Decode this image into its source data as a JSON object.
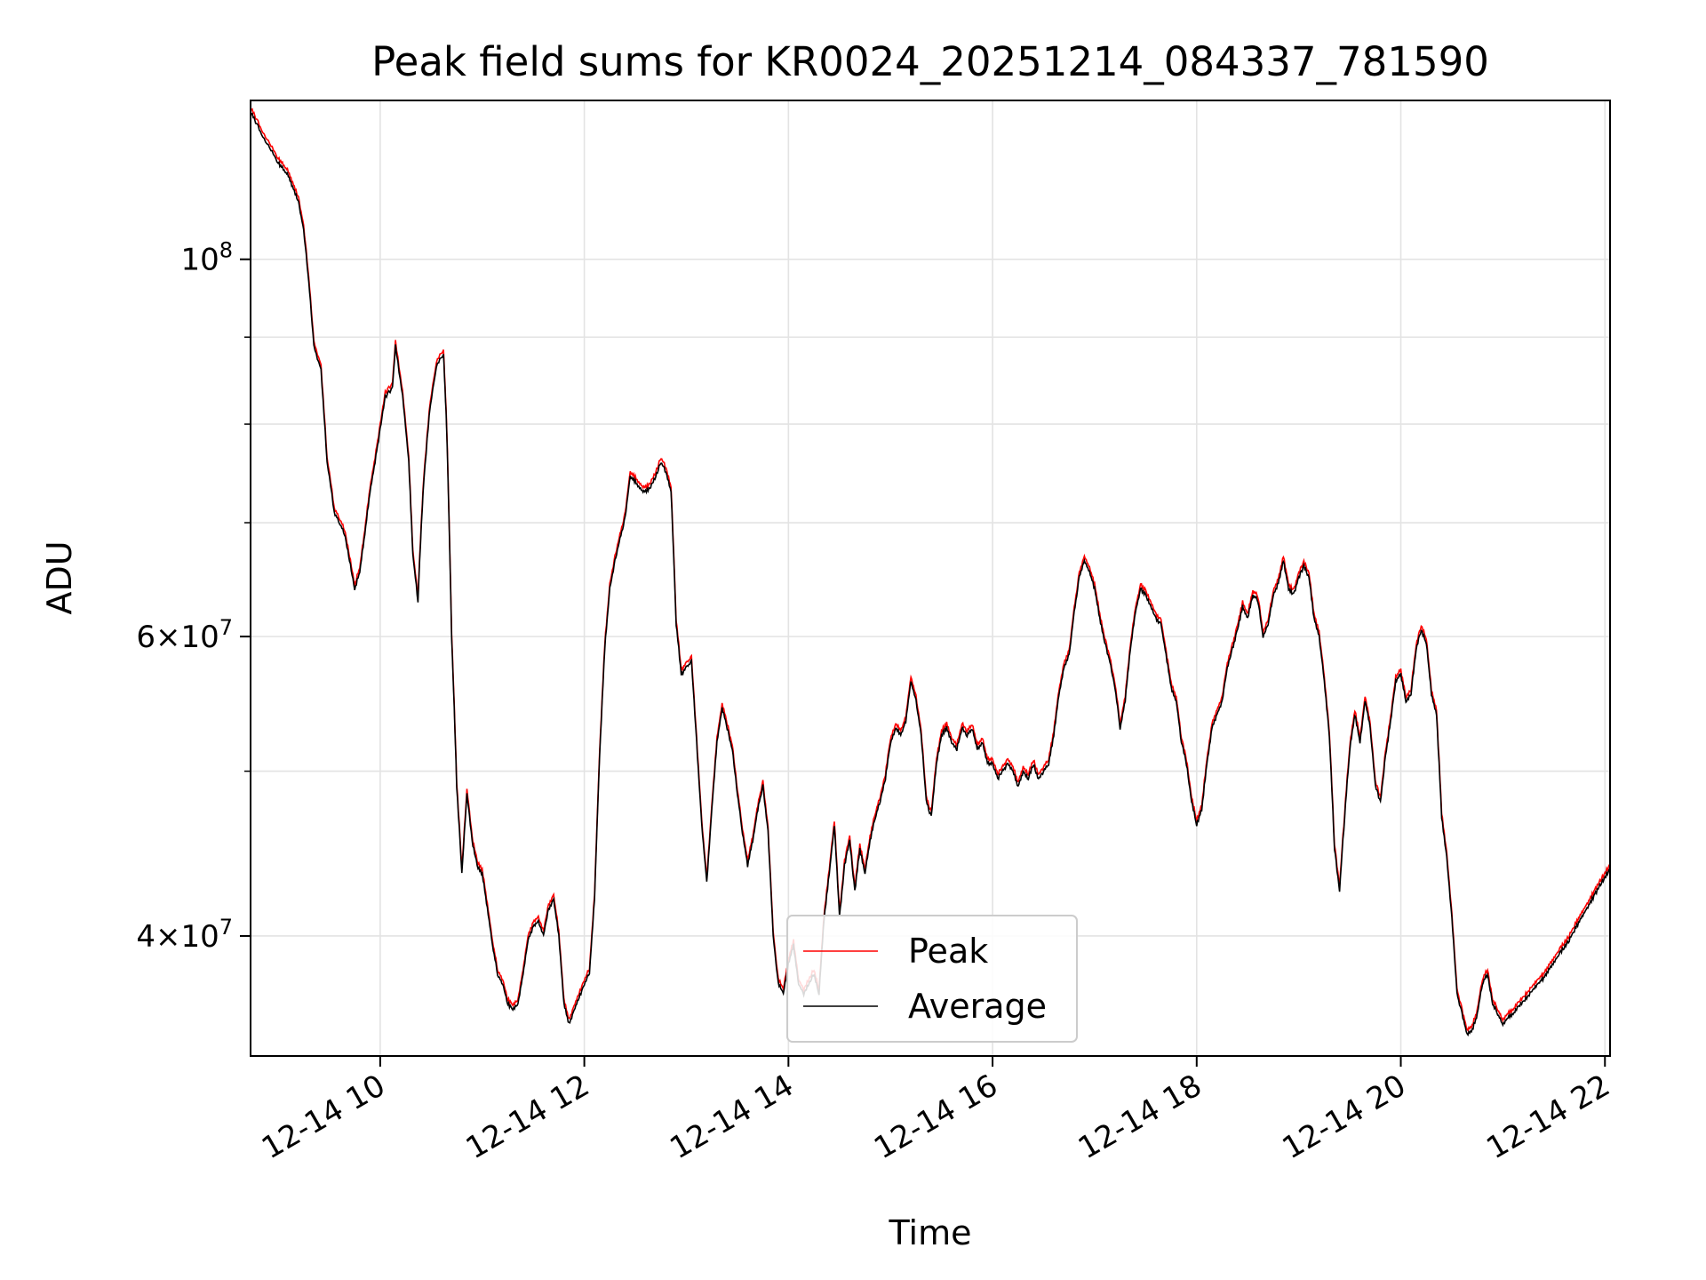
{
  "chart_data": {
    "type": "line",
    "title": "Peak field sums for KR0024_20251214_084337_781590",
    "xlabel": "Time",
    "ylabel": "ADU",
    "yscale": "log",
    "xlim": [
      8.73,
      22.05
    ],
    "ylim": [
      34000000,
      124000000
    ],
    "grid": true,
    "x_ticks": [
      {
        "value": 10,
        "label": "12-14 10"
      },
      {
        "value": 12,
        "label": "12-14 12"
      },
      {
        "value": 14,
        "label": "12-14 14"
      },
      {
        "value": 16,
        "label": "12-14 16"
      },
      {
        "value": 18,
        "label": "12-14 18"
      },
      {
        "value": 20,
        "label": "12-14 20"
      },
      {
        "value": 22,
        "label": "12-14 22"
      }
    ],
    "y_ticks": [
      {
        "value": 100000000,
        "base": "10",
        "exp": "8"
      },
      {
        "value": 60000000,
        "base": "6×10",
        "exp": "7"
      },
      {
        "value": 40000000,
        "base": "4×10",
        "exp": "7"
      }
    ],
    "y_minor": [
      50000000,
      70000000,
      80000000,
      90000000
    ],
    "legend": {
      "placement": "lower-center",
      "entries": [
        "Peak",
        "Average"
      ]
    },
    "colors": {
      "Peak": "#ff0000",
      "Average": "#000000",
      "grid": "#e3e3e3"
    },
    "x_unit": "hour of 2025-12-14",
    "series": [
      {
        "name": "Average",
        "points": [
          [
            8.73,
            122.0
          ],
          [
            8.78,
            120.5
          ],
          [
            8.85,
            118.0
          ],
          [
            8.93,
            116.0
          ],
          [
            9.0,
            114.0
          ],
          [
            9.05,
            113.0
          ],
          [
            9.1,
            112.0
          ],
          [
            9.15,
            110.0
          ],
          [
            9.2,
            108.0
          ],
          [
            9.25,
            104.0
          ],
          [
            9.3,
            97.0
          ],
          [
            9.35,
            89.0
          ],
          [
            9.42,
            86.0
          ],
          [
            9.48,
            76.0
          ],
          [
            9.55,
            71.0
          ],
          [
            9.6,
            70.0
          ],
          [
            9.65,
            69.0
          ],
          [
            9.7,
            66.5
          ],
          [
            9.75,
            64.0
          ],
          [
            9.8,
            65.5
          ],
          [
            9.85,
            69.0
          ],
          [
            9.9,
            73.0
          ],
          [
            9.95,
            76.0
          ],
          [
            10.0,
            79.5
          ],
          [
            10.05,
            83.0
          ],
          [
            10.12,
            84.0
          ],
          [
            10.15,
            89.0
          ],
          [
            10.22,
            83.0
          ],
          [
            10.28,
            76.0
          ],
          [
            10.32,
            67.0
          ],
          [
            10.37,
            63.0
          ],
          [
            10.42,
            73.0
          ],
          [
            10.48,
            81.0
          ],
          [
            10.55,
            86.5
          ],
          [
            10.62,
            88.0
          ],
          [
            10.65,
            80.0
          ],
          [
            10.7,
            60.0
          ],
          [
            10.75,
            49.0
          ],
          [
            10.8,
            43.5
          ],
          [
            10.85,
            48.5
          ],
          [
            10.9,
            45.5
          ],
          [
            10.95,
            44.0
          ],
          [
            11.0,
            43.5
          ],
          [
            11.05,
            41.5
          ],
          [
            11.1,
            39.5
          ],
          [
            11.15,
            38.0
          ],
          [
            11.2,
            37.5
          ],
          [
            11.25,
            36.5
          ],
          [
            11.3,
            36.2
          ],
          [
            11.35,
            36.5
          ],
          [
            11.4,
            38.0
          ],
          [
            11.45,
            39.8
          ],
          [
            11.5,
            40.5
          ],
          [
            11.55,
            40.8
          ],
          [
            11.6,
            40.0
          ],
          [
            11.65,
            41.5
          ],
          [
            11.7,
            42.0
          ],
          [
            11.75,
            40.0
          ],
          [
            11.8,
            36.5
          ],
          [
            11.85,
            35.5
          ],
          [
            11.9,
            36.2
          ],
          [
            11.95,
            36.8
          ],
          [
            12.0,
            37.5
          ],
          [
            12.05,
            38.0
          ],
          [
            12.1,
            42.0
          ],
          [
            12.15,
            51.0
          ],
          [
            12.2,
            59.0
          ],
          [
            12.25,
            64.0
          ],
          [
            12.3,
            66.5
          ],
          [
            12.35,
            68.5
          ],
          [
            12.4,
            70.5
          ],
          [
            12.45,
            74.5
          ],
          [
            12.5,
            74.0
          ],
          [
            12.55,
            73.2
          ],
          [
            12.6,
            73.0
          ],
          [
            12.65,
            73.5
          ],
          [
            12.7,
            74.5
          ],
          [
            12.75,
            76.0
          ],
          [
            12.8,
            75.0
          ],
          [
            12.85,
            73.0
          ],
          [
            12.9,
            61.0
          ],
          [
            12.95,
            57.0
          ],
          [
            13.0,
            57.5
          ],
          [
            13.05,
            58.0
          ],
          [
            13.1,
            52.0
          ],
          [
            13.15,
            46.5
          ],
          [
            13.2,
            43.0
          ],
          [
            13.25,
            47.5
          ],
          [
            13.3,
            52.0
          ],
          [
            13.35,
            54.5
          ],
          [
            13.4,
            53.0
          ],
          [
            13.45,
            51.5
          ],
          [
            13.5,
            48.5
          ],
          [
            13.55,
            46.0
          ],
          [
            13.6,
            44.0
          ],
          [
            13.65,
            45.5
          ],
          [
            13.7,
            47.5
          ],
          [
            13.75,
            49.0
          ],
          [
            13.8,
            46.0
          ],
          [
            13.85,
            40.0
          ],
          [
            13.9,
            37.5
          ],
          [
            13.95,
            37.0
          ],
          [
            14.0,
            38.5
          ],
          [
            14.05,
            39.5
          ],
          [
            14.1,
            37.5
          ],
          [
            14.15,
            37.0
          ],
          [
            14.2,
            37.5
          ],
          [
            14.25,
            38.0
          ],
          [
            14.3,
            37.0
          ],
          [
            14.35,
            41.0
          ],
          [
            14.4,
            43.5
          ],
          [
            14.45,
            46.5
          ],
          [
            14.5,
            41.0
          ],
          [
            14.55,
            44.0
          ],
          [
            14.6,
            45.5
          ],
          [
            14.65,
            42.5
          ],
          [
            14.7,
            45.0
          ],
          [
            14.75,
            43.5
          ],
          [
            14.8,
            45.5
          ],
          [
            14.85,
            47.0
          ],
          [
            14.9,
            48.0
          ],
          [
            14.95,
            49.5
          ],
          [
            15.0,
            52.0
          ],
          [
            15.05,
            53.0
          ],
          [
            15.1,
            52.5
          ],
          [
            15.15,
            53.5
          ],
          [
            15.2,
            56.5
          ],
          [
            15.25,
            55.0
          ],
          [
            15.3,
            52.5
          ],
          [
            15.35,
            48.0
          ],
          [
            15.4,
            47.0
          ],
          [
            15.45,
            50.5
          ],
          [
            15.5,
            52.5
          ],
          [
            15.55,
            53.0
          ],
          [
            15.6,
            52.0
          ],
          [
            15.65,
            51.5
          ],
          [
            15.7,
            53.0
          ],
          [
            15.75,
            52.5
          ],
          [
            15.8,
            53.0
          ],
          [
            15.85,
            51.5
          ],
          [
            15.9,
            52.0
          ],
          [
            15.95,
            50.5
          ],
          [
            16.0,
            50.5
          ],
          [
            16.05,
            49.5
          ],
          [
            16.1,
            50.0
          ],
          [
            16.15,
            50.5
          ],
          [
            16.2,
            50.0
          ],
          [
            16.25,
            49.0
          ],
          [
            16.3,
            50.0
          ],
          [
            16.35,
            49.5
          ],
          [
            16.4,
            50.5
          ],
          [
            16.45,
            49.5
          ],
          [
            16.5,
            50.0
          ],
          [
            16.55,
            50.5
          ],
          [
            16.6,
            52.5
          ],
          [
            16.65,
            55.5
          ],
          [
            16.7,
            57.5
          ],
          [
            16.75,
            58.5
          ],
          [
            16.8,
            62.0
          ],
          [
            16.85,
            65.0
          ],
          [
            16.9,
            66.5
          ],
          [
            16.95,
            65.5
          ],
          [
            17.0,
            64.0
          ],
          [
            17.05,
            61.5
          ],
          [
            17.1,
            59.5
          ],
          [
            17.15,
            58.0
          ],
          [
            17.2,
            56.0
          ],
          [
            17.25,
            53.0
          ],
          [
            17.3,
            55.0
          ],
          [
            17.35,
            59.0
          ],
          [
            17.4,
            62.0
          ],
          [
            17.45,
            64.0
          ],
          [
            17.5,
            63.5
          ],
          [
            17.55,
            62.5
          ],
          [
            17.6,
            61.5
          ],
          [
            17.65,
            61.0
          ],
          [
            17.7,
            58.5
          ],
          [
            17.75,
            56.0
          ],
          [
            17.8,
            55.0
          ],
          [
            17.85,
            52.0
          ],
          [
            17.9,
            50.5
          ],
          [
            17.95,
            48.0
          ],
          [
            18.0,
            46.5
          ],
          [
            18.05,
            47.5
          ],
          [
            18.1,
            50.5
          ],
          [
            18.15,
            53.0
          ],
          [
            18.2,
            54.0
          ],
          [
            18.25,
            55.0
          ],
          [
            18.3,
            57.5
          ],
          [
            18.35,
            59.0
          ],
          [
            18.4,
            60.5
          ],
          [
            18.45,
            62.5
          ],
          [
            18.5,
            61.5
          ],
          [
            18.55,
            63.5
          ],
          [
            18.6,
            63.0
          ],
          [
            18.65,
            60.0
          ],
          [
            18.7,
            61.0
          ],
          [
            18.75,
            63.5
          ],
          [
            18.8,
            64.5
          ],
          [
            18.85,
            66.5
          ],
          [
            18.9,
            64.0
          ],
          [
            18.95,
            63.5
          ],
          [
            19.0,
            65.0
          ],
          [
            19.05,
            66.0
          ],
          [
            19.1,
            65.0
          ],
          [
            19.15,
            61.5
          ],
          [
            19.2,
            60.0
          ],
          [
            19.25,
            56.5
          ],
          [
            19.3,
            52.5
          ],
          [
            19.35,
            45.0
          ],
          [
            19.4,
            42.5
          ],
          [
            19.45,
            47.0
          ],
          [
            19.5,
            51.5
          ],
          [
            19.55,
            54.0
          ],
          [
            19.6,
            52.0
          ],
          [
            19.65,
            55.0
          ],
          [
            19.7,
            53.0
          ],
          [
            19.75,
            49.0
          ],
          [
            19.8,
            48.0
          ],
          [
            19.85,
            51.0
          ],
          [
            19.9,
            53.5
          ],
          [
            19.95,
            56.5
          ],
          [
            20.0,
            57.0
          ],
          [
            20.05,
            55.0
          ],
          [
            20.1,
            55.5
          ],
          [
            20.15,
            59.0
          ],
          [
            20.2,
            60.5
          ],
          [
            20.25,
            59.5
          ],
          [
            20.3,
            55.5
          ],
          [
            20.35,
            54.0
          ],
          [
            20.4,
            47.0
          ],
          [
            20.45,
            44.5
          ],
          [
            20.5,
            41.0
          ],
          [
            20.55,
            37.0
          ],
          [
            20.6,
            36.0
          ],
          [
            20.65,
            35.0
          ],
          [
            20.7,
            35.2
          ],
          [
            20.75,
            36.0
          ],
          [
            20.8,
            37.5
          ],
          [
            20.85,
            38.0
          ],
          [
            20.9,
            36.5
          ],
          [
            20.95,
            36.0
          ],
          [
            21.0,
            35.5
          ],
          [
            21.05,
            35.8
          ],
          [
            21.1,
            36.0
          ],
          [
            21.15,
            36.3
          ],
          [
            21.2,
            36.6
          ],
          [
            21.25,
            36.9
          ],
          [
            21.3,
            37.2
          ],
          [
            21.35,
            37.5
          ],
          [
            21.4,
            37.8
          ],
          [
            21.45,
            38.2
          ],
          [
            21.5,
            38.6
          ],
          [
            21.55,
            39.0
          ],
          [
            21.6,
            39.4
          ],
          [
            21.65,
            39.8
          ],
          [
            21.7,
            40.3
          ],
          [
            21.75,
            40.8
          ],
          [
            21.8,
            41.3
          ],
          [
            21.85,
            41.8
          ],
          [
            21.9,
            42.3
          ],
          [
            21.95,
            42.8
          ],
          [
            22.0,
            43.3
          ],
          [
            22.05,
            43.8
          ]
        ]
      }
    ]
  }
}
